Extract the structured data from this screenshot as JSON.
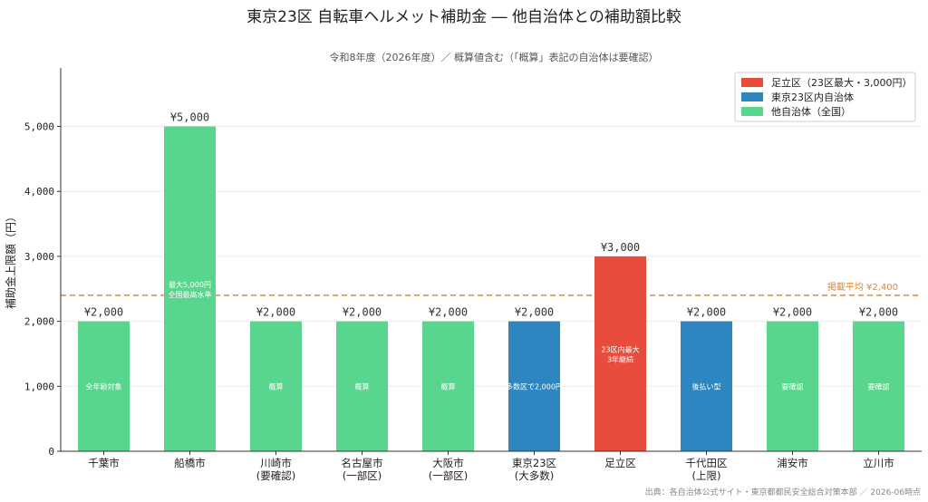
{
  "chart_data": {
    "type": "bar",
    "title": "東京23区 自転車ヘルメット補助金 ― 他自治体との補助額比較",
    "subtitle": "令和8年度（2026年度）／ 概算値含む（「概算」表記の自治体は要確認）",
    "ylabel": "補助金上限額（円）",
    "ylim": [
      0,
      5900
    ],
    "yticks": [
      0,
      1000,
      2000,
      3000,
      4000,
      5000
    ],
    "ytick_labels": [
      "0",
      "1,000",
      "2,000",
      "3,000",
      "4,000",
      "5,000"
    ],
    "grid": true,
    "legend_position": "top-right",
    "legend": [
      {
        "label": "足立区（23区最大・3,000円）",
        "color": "#e74c3c"
      },
      {
        "label": "東京23区内自治体",
        "color": "#2e86c1"
      },
      {
        "label": "他自治体（全国）",
        "color": "#58d68d"
      }
    ],
    "bars": [
      {
        "name": "千葉市",
        "name2": "",
        "value": 2000,
        "value_label": "¥2,000",
        "note": "全年齢対象",
        "note2": "",
        "group": 2
      },
      {
        "name": "船橋市",
        "name2": "",
        "value": 5000,
        "value_label": "¥5,000",
        "note": "最大5,000円",
        "note2": "全国最高水準",
        "group": 2
      },
      {
        "name": "川崎市",
        "name2": "(要確認)",
        "value": 2000,
        "value_label": "¥2,000",
        "note": "概算",
        "note2": "",
        "group": 2
      },
      {
        "name": "名古屋市",
        "name2": "(一部区)",
        "value": 2000,
        "value_label": "¥2,000",
        "note": "概算",
        "note2": "",
        "group": 2
      },
      {
        "name": "大阪市",
        "name2": "(一部区)",
        "value": 2000,
        "value_label": "¥2,000",
        "note": "概算",
        "note2": "",
        "group": 2
      },
      {
        "name": "東京23区",
        "name2": "(大多数)",
        "value": 2000,
        "value_label": "¥2,000",
        "note": "多数区で2,000円",
        "note2": "",
        "group": 1
      },
      {
        "name": "足立区",
        "name2": "",
        "value": 3000,
        "value_label": "¥3,000",
        "note": "23区内最大",
        "note2": "3年継続",
        "group": 0
      },
      {
        "name": "千代田区",
        "name2": "(上限)",
        "value": 2000,
        "value_label": "¥2,000",
        "note": "後払い型",
        "note2": "",
        "group": 1
      },
      {
        "name": "浦安市",
        "name2": "",
        "value": 2000,
        "value_label": "¥2,000",
        "note": "要確認",
        "note2": "",
        "group": 2
      },
      {
        "name": "立川市",
        "name2": "",
        "value": 2000,
        "value_label": "¥2,000",
        "note": "要確認",
        "note2": "",
        "group": 2
      }
    ],
    "average": {
      "value": 2400,
      "label": "掲載平均 ¥2,400",
      "color": "#e8862a"
    }
  },
  "source": "出典：各自治体公式サイト・東京都都民安全総合対策本部 ／ 2026-06時点"
}
